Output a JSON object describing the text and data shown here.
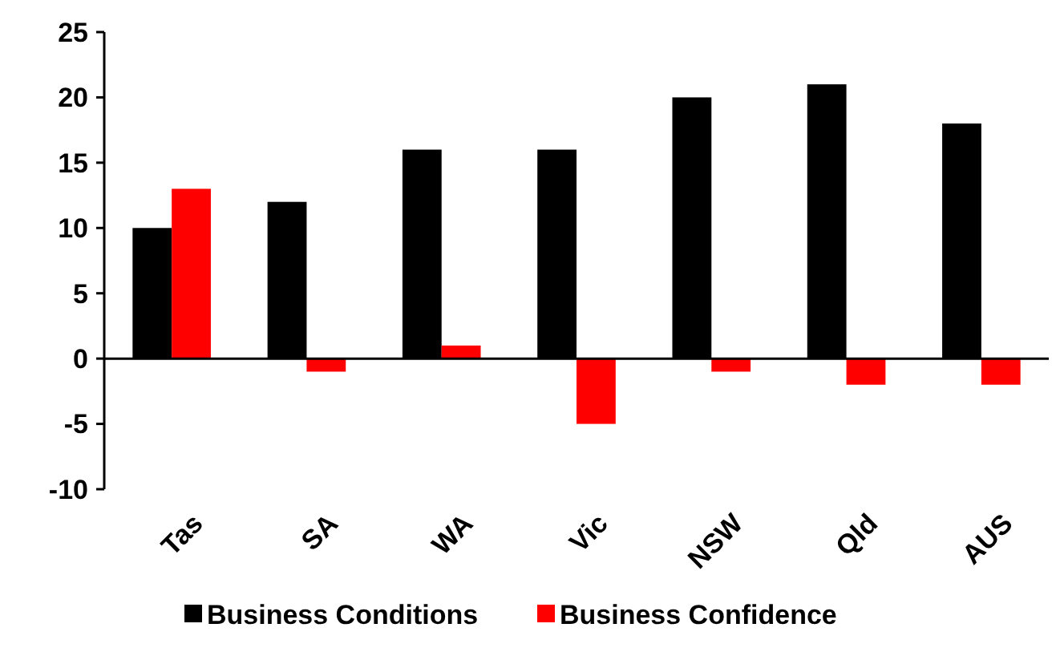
{
  "chart_data": {
    "type": "bar",
    "categories": [
      "Tas",
      "SA",
      "WA",
      "Vic",
      "NSW",
      "Qld",
      "AUS"
    ],
    "series": [
      {
        "name": "Business Conditions",
        "color": "#000000",
        "values": [
          10,
          12,
          16,
          16,
          20,
          21,
          18
        ]
      },
      {
        "name": "Business Confidence",
        "color": "#ff0000",
        "values": [
          13,
          -1,
          1,
          -5,
          -1,
          -2,
          -2
        ]
      }
    ],
    "ylim": [
      -10,
      25
    ],
    "yticks": [
      -10,
      -5,
      0,
      5,
      10,
      15,
      20,
      25
    ],
    "legend": "bottom"
  }
}
